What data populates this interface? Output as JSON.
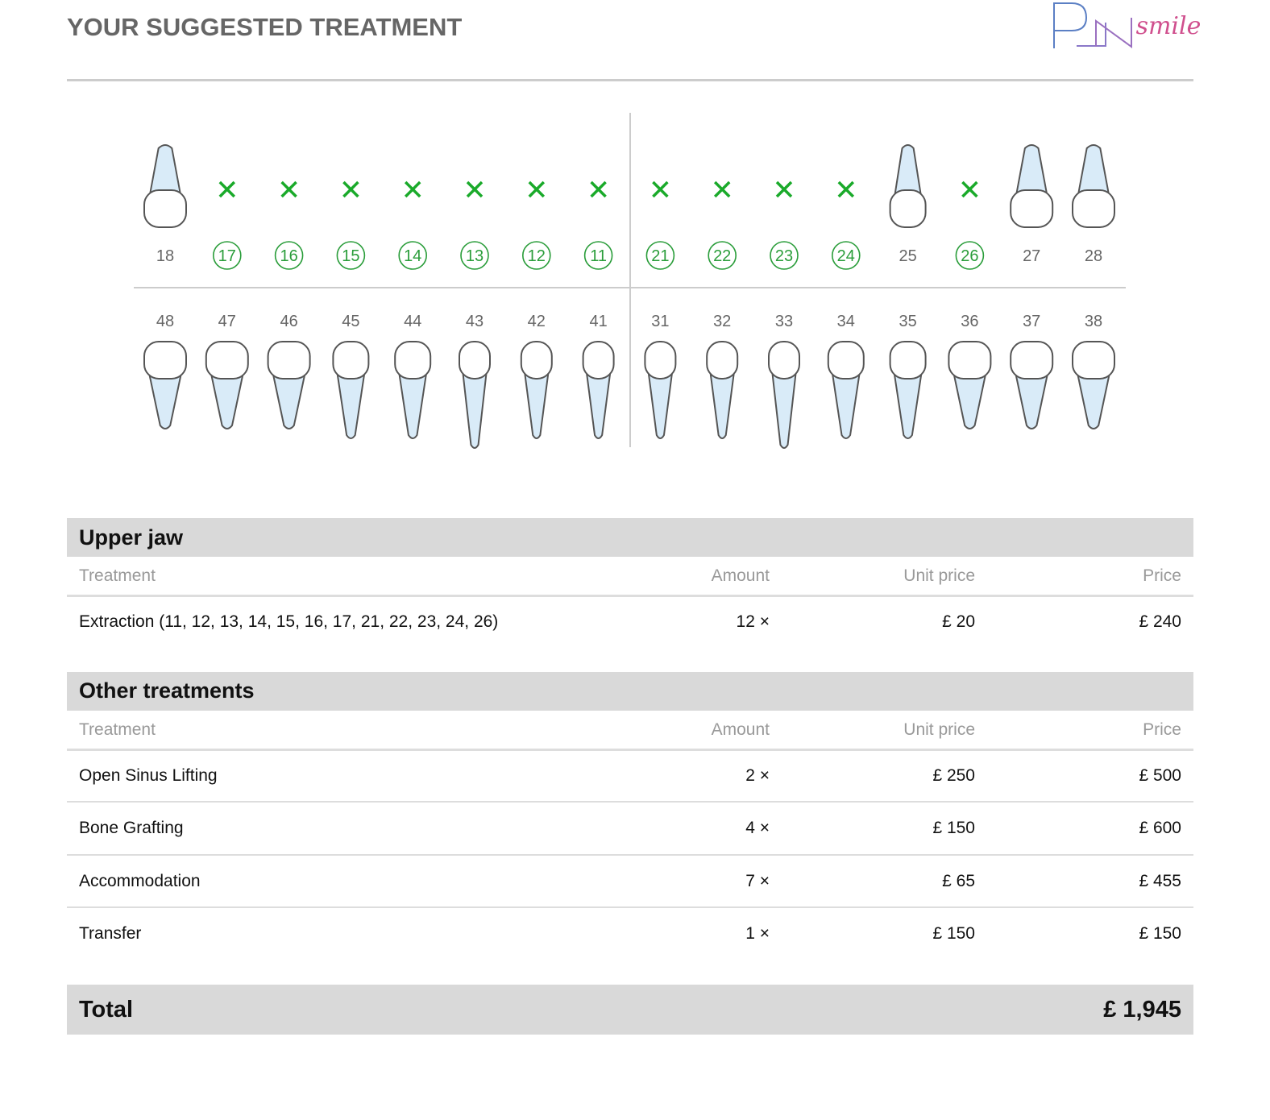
{
  "header": {
    "title": "YOUR SUGGESTED TREATMENT",
    "logo": "smile"
  },
  "teeth": {
    "upper": [
      {
        "number": "18",
        "extracted": false
      },
      {
        "number": "17",
        "extracted": true
      },
      {
        "number": "16",
        "extracted": true
      },
      {
        "number": "15",
        "extracted": true
      },
      {
        "number": "14",
        "extracted": true
      },
      {
        "number": "13",
        "extracted": true
      },
      {
        "number": "12",
        "extracted": true
      },
      {
        "number": "11",
        "extracted": true
      },
      {
        "number": "21",
        "extracted": true
      },
      {
        "number": "22",
        "extracted": true
      },
      {
        "number": "23",
        "extracted": true
      },
      {
        "number": "24",
        "extracted": true
      },
      {
        "number": "25",
        "extracted": false
      },
      {
        "number": "26",
        "extracted": true
      },
      {
        "number": "27",
        "extracted": false
      },
      {
        "number": "28",
        "extracted": false
      }
    ],
    "lower": [
      {
        "number": "48",
        "extracted": false
      },
      {
        "number": "47",
        "extracted": false
      },
      {
        "number": "46",
        "extracted": false
      },
      {
        "number": "45",
        "extracted": false
      },
      {
        "number": "44",
        "extracted": false
      },
      {
        "number": "43",
        "extracted": false
      },
      {
        "number": "42",
        "extracted": false
      },
      {
        "number": "41",
        "extracted": false
      },
      {
        "number": "31",
        "extracted": false
      },
      {
        "number": "32",
        "extracted": false
      },
      {
        "number": "33",
        "extracted": false
      },
      {
        "number": "34",
        "extracted": false
      },
      {
        "number": "35",
        "extracted": false
      },
      {
        "number": "36",
        "extracted": false
      },
      {
        "number": "37",
        "extracted": false
      },
      {
        "number": "38",
        "extracted": false
      }
    ]
  },
  "sections": [
    {
      "title": "Upper jaw",
      "columns": [
        "Treatment",
        "Amount",
        "Unit price",
        "Price"
      ],
      "rows": [
        [
          "Extraction (11, 12, 13, 14, 15, 16, 17, 21, 22, 23, 24, 26)",
          "12 ×",
          "£ 20",
          "£ 240"
        ]
      ]
    },
    {
      "title": "Other treatments",
      "columns": [
        "Treatment",
        "Amount",
        "Unit price",
        "Price"
      ],
      "rows": [
        [
          "Open Sinus Lifting",
          "2 ×",
          "£ 250",
          "£ 500"
        ],
        [
          "Bone Grafting",
          "4 ×",
          "£ 150",
          "£ 600"
        ],
        [
          "Accommodation",
          "7 ×",
          "£ 65",
          "£ 455"
        ],
        [
          "Transfer",
          "1 ×",
          "£ 150",
          "£ 150"
        ]
      ]
    }
  ],
  "total": {
    "label": "Total",
    "value": "£ 1,945"
  }
}
